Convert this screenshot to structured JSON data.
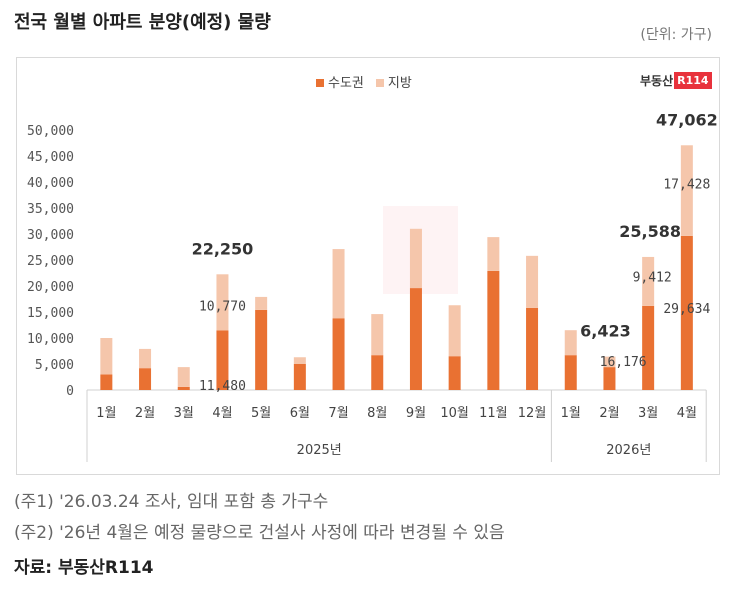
{
  "title": "전국 월별 아파트 분양(예정) 물량",
  "unit": "(단위: 가구)",
  "logo": "부동산R114",
  "notes": [
    "(주1) '26.03.24 조사, 임대 포함 총 가구수",
    "(주2) '26년 4월은 예정 물량으로 건설사 사정에 따라 변경될 수 있음"
  ],
  "source": "자료: 부동산R114",
  "chart_data": {
    "type": "bar",
    "stacked": true,
    "categories": [
      "1월",
      "2월",
      "3월",
      "4월",
      "5월",
      "6월",
      "7월",
      "8월",
      "9월",
      "10월",
      "11월",
      "12월",
      "1월",
      "2월",
      "3월",
      "4월"
    ],
    "groups": [
      {
        "label": "2025년",
        "count": 12
      },
      {
        "label": "2026년",
        "count": 4
      }
    ],
    "series": [
      {
        "name": "수도권",
        "color": "#e97132",
        "values": [
          3000,
          4200,
          600,
          11480,
          15400,
          5000,
          13800,
          6700,
          19600,
          6500,
          22900,
          15800,
          6700,
          4400,
          16176,
          29634
        ]
      },
      {
        "name": "지방",
        "color": "#f5c6ab",
        "values": [
          7000,
          3700,
          3800,
          10770,
          2500,
          1300,
          13300,
          7900,
          11400,
          9800,
          6500,
          10000,
          4800,
          2023,
          9412,
          17428
        ]
      }
    ],
    "data_labels": [
      {
        "index": 3,
        "total": "22,250",
        "parts": [
          "11,480",
          "10,770"
        ]
      },
      {
        "index": 13,
        "total": "6,423",
        "parts": []
      },
      {
        "index": 14,
        "total": "25,588",
        "parts": [
          "16,176",
          "9,412"
        ]
      },
      {
        "index": 15,
        "total": "47,062",
        "parts": [
          "29,634",
          "17,428"
        ]
      }
    ],
    "ylim": [
      0,
      50000
    ],
    "yticks": [
      "0",
      "5,000",
      "10,000",
      "15,000",
      "20,000",
      "25,000",
      "30,000",
      "35,000",
      "40,000",
      "45,000",
      "50,000"
    ],
    "legend": "top-center",
    "grid": false
  }
}
